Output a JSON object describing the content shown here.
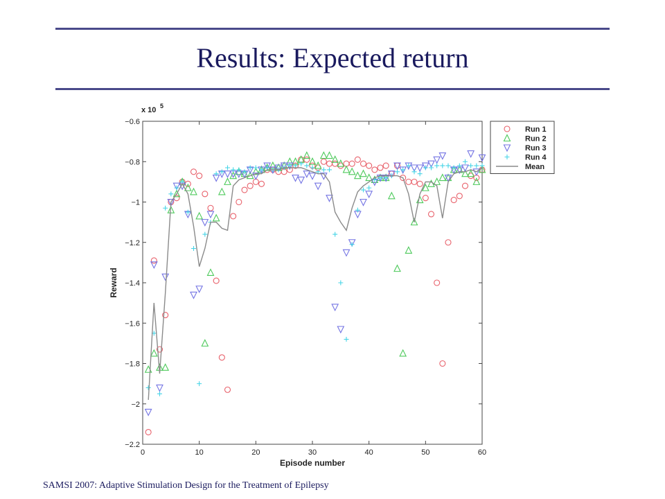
{
  "slide": {
    "title": "Results: Expected return",
    "footer": "SAMSI 2007: Adaptive Stimulation Design for the Treatment  of Epilepsy"
  },
  "chart_data": {
    "type": "scatter",
    "xlabel": "Episode number",
    "ylabel": "Reward",
    "y_exponent": "x 10",
    "y_exponent_power": "5",
    "xlim": [
      0,
      60
    ],
    "ylim": [
      -2.2,
      -0.6
    ],
    "xticks": [
      0,
      10,
      20,
      30,
      40,
      50,
      60
    ],
    "xtick_labels": [
      "0",
      "10",
      "20",
      "30",
      "40",
      "50",
      "60"
    ],
    "yticks": [
      -0.6,
      -0.8,
      -1,
      -1.2,
      -1.4,
      -1.6,
      -1.8,
      -2,
      -2.2
    ],
    "ytick_labels": [
      "−0.6",
      "−0.8",
      "−1",
      "−1.2",
      "−1.4",
      "−1.6",
      "−1.8",
      "−2",
      "−2.2"
    ],
    "legend_position": "top-right",
    "grid": false,
    "series": [
      {
        "name": "Run 1",
        "marker": "circle",
        "color": "#e8606a",
        "x": [
          1,
          2,
          3,
          4,
          5,
          6,
          7,
          8,
          9,
          10,
          11,
          12,
          13,
          14,
          15,
          16,
          17,
          18,
          19,
          20,
          21,
          22,
          23,
          24,
          25,
          26,
          27,
          28,
          29,
          30,
          31,
          32,
          33,
          34,
          35,
          36,
          37,
          38,
          39,
          40,
          41,
          42,
          43,
          44,
          45,
          46,
          47,
          48,
          49,
          50,
          51,
          52,
          53,
          54,
          55,
          56,
          57,
          58,
          59,
          60
        ],
        "y": [
          -2.14,
          -1.29,
          -1.73,
          -1.56,
          -1.0,
          -0.98,
          -0.9,
          -0.91,
          -0.85,
          -0.87,
          -0.96,
          -1.03,
          -1.39,
          -1.77,
          -1.93,
          -1.07,
          -1.0,
          -0.94,
          -0.92,
          -0.9,
          -0.91,
          -0.84,
          -0.84,
          -0.85,
          -0.85,
          -0.84,
          -0.82,
          -0.79,
          -0.79,
          -0.82,
          -0.83,
          -0.8,
          -0.81,
          -0.81,
          -0.82,
          -0.81,
          -0.81,
          -0.79,
          -0.81,
          -0.82,
          -0.84,
          -0.83,
          -0.82,
          -0.86,
          -0.82,
          -0.88,
          -0.9,
          -0.9,
          -0.91,
          -0.98,
          -1.06,
          -1.4,
          -1.8,
          -1.2,
          -0.99,
          -0.97,
          -0.92,
          -0.87,
          -0.88,
          -0.84
        ]
      },
      {
        "name": "Run 2",
        "marker": "triangle-up",
        "color": "#4cc95a",
        "x": [
          1,
          2,
          3,
          4,
          5,
          6,
          7,
          8,
          9,
          10,
          11,
          12,
          13,
          14,
          15,
          16,
          17,
          18,
          19,
          20,
          21,
          22,
          23,
          24,
          25,
          26,
          27,
          28,
          29,
          30,
          31,
          32,
          33,
          34,
          35,
          36,
          37,
          38,
          39,
          40,
          41,
          42,
          43,
          44,
          45,
          46,
          47,
          48,
          49,
          50,
          51,
          52,
          53,
          54,
          55,
          56,
          57,
          58,
          59,
          60
        ],
        "y": [
          -1.83,
          -1.75,
          -1.82,
          -1.82,
          -1.04,
          -0.96,
          -0.9,
          -0.93,
          -0.95,
          -1.07,
          -1.7,
          -1.35,
          -1.08,
          -0.95,
          -0.9,
          -0.87,
          -0.85,
          -0.86,
          -0.87,
          -0.85,
          -0.84,
          -0.83,
          -0.82,
          -0.83,
          -0.82,
          -0.8,
          -0.8,
          -0.79,
          -0.77,
          -0.8,
          -0.82,
          -0.77,
          -0.77,
          -0.79,
          -0.81,
          -0.84,
          -0.85,
          -0.87,
          -0.86,
          -0.88,
          -0.89,
          -0.88,
          -0.88,
          -0.97,
          -1.33,
          -1.75,
          -1.24,
          -1.1,
          -0.99,
          -0.93,
          -0.91,
          -0.9,
          -0.88,
          -0.88,
          -0.84,
          -0.84,
          -0.86,
          -0.86,
          -0.9,
          -0.84
        ]
      },
      {
        "name": "Run 3",
        "marker": "triangle-down",
        "color": "#7373e3",
        "x": [
          1,
          2,
          3,
          4,
          5,
          6,
          7,
          8,
          9,
          10,
          11,
          12,
          13,
          14,
          15,
          16,
          17,
          18,
          19,
          20,
          21,
          22,
          23,
          24,
          25,
          26,
          27,
          28,
          29,
          30,
          31,
          32,
          33,
          34,
          35,
          36,
          37,
          38,
          39,
          40,
          41,
          42,
          43,
          44,
          45,
          46,
          47,
          48,
          49,
          50,
          51,
          52,
          53,
          54,
          55,
          56,
          57,
          58,
          59,
          60
        ],
        "y": [
          -2.04,
          -1.31,
          -1.92,
          -1.37,
          -1.0,
          -0.92,
          -0.92,
          -1.06,
          -1.46,
          -1.43,
          -1.1,
          -1.06,
          -0.88,
          -0.86,
          -0.86,
          -0.86,
          -0.86,
          -0.86,
          -0.84,
          -0.87,
          -0.84,
          -0.82,
          -0.84,
          -0.83,
          -0.82,
          -0.82,
          -0.88,
          -0.89,
          -0.86,
          -0.87,
          -0.92,
          -0.87,
          -0.98,
          -1.52,
          -1.63,
          -1.25,
          -1.2,
          -1.06,
          -1.0,
          -0.96,
          -0.9,
          -0.88,
          -0.88,
          -0.86,
          -0.82,
          -0.84,
          -0.82,
          -0.83,
          -0.83,
          -0.82,
          -0.81,
          -0.79,
          -0.77,
          -0.88,
          -0.84,
          -0.84,
          -0.83,
          -0.76,
          -0.85,
          -0.78
        ]
      },
      {
        "name": "Run 4",
        "marker": "plus",
        "color": "#45d4e6",
        "x": [
          1,
          2,
          3,
          4,
          5,
          6,
          7,
          8,
          9,
          10,
          11,
          12,
          13,
          14,
          15,
          16,
          17,
          18,
          19,
          20,
          21,
          22,
          23,
          24,
          25,
          26,
          27,
          28,
          29,
          30,
          31,
          32,
          33,
          34,
          35,
          36,
          37,
          38,
          39,
          40,
          41,
          42,
          43,
          44,
          45,
          46,
          47,
          48,
          49,
          50,
          51,
          52,
          53,
          54,
          55,
          56,
          57,
          58,
          59,
          60
        ],
        "y": [
          -1.92,
          -1.65,
          -1.95,
          -1.03,
          -0.96,
          -0.93,
          -0.9,
          -1.05,
          -1.23,
          -1.9,
          -1.16,
          -1.1,
          -0.86,
          -0.85,
          -0.83,
          -0.84,
          -0.84,
          -0.85,
          -0.83,
          -0.83,
          -0.84,
          -0.83,
          -0.84,
          -0.84,
          -0.83,
          -0.82,
          -0.82,
          -0.81,
          -0.82,
          -0.83,
          -0.85,
          -0.84,
          -0.84,
          -1.16,
          -1.4,
          -1.68,
          -1.21,
          -1.04,
          -0.94,
          -0.93,
          -0.89,
          -0.88,
          -0.88,
          -0.87,
          -0.85,
          -0.84,
          -0.82,
          -0.85,
          -0.86,
          -0.83,
          -0.83,
          -0.82,
          -0.82,
          -0.82,
          -0.83,
          -0.82,
          -0.8,
          -0.82,
          -0.82,
          -0.82
        ]
      },
      {
        "name": "Mean",
        "marker": "line",
        "color": "#8a8a8a",
        "x": [
          1,
          2,
          3,
          4,
          5,
          6,
          7,
          8,
          9,
          10,
          11,
          12,
          13,
          14,
          15,
          16,
          17,
          18,
          19,
          20,
          21,
          22,
          23,
          24,
          25,
          26,
          27,
          28,
          29,
          30,
          31,
          32,
          33,
          34,
          35,
          36,
          37,
          38,
          39,
          40,
          41,
          42,
          43,
          44,
          45,
          46,
          47,
          48,
          49,
          50,
          51,
          52,
          53,
          54,
          55,
          56,
          57,
          58,
          59,
          60
        ],
        "y": [
          -1.98,
          -1.5,
          -1.85,
          -1.45,
          -1.0,
          -0.96,
          -0.91,
          -0.96,
          -1.12,
          -1.32,
          -1.23,
          -1.1,
          -1.1,
          -1.13,
          -1.14,
          -0.92,
          -0.89,
          -0.88,
          -0.87,
          -0.86,
          -0.86,
          -0.84,
          -0.84,
          -0.84,
          -0.83,
          -0.83,
          -0.83,
          -0.83,
          -0.84,
          -0.85,
          -0.86,
          -0.86,
          -0.9,
          -1.05,
          -1.1,
          -1.14,
          -1.03,
          -0.95,
          -0.92,
          -0.9,
          -0.88,
          -0.87,
          -0.87,
          -0.87,
          -0.87,
          -0.88,
          -0.96,
          -1.1,
          -0.96,
          -0.9,
          -0.9,
          -0.92,
          -1.08,
          -0.9,
          -0.86,
          -0.85,
          -0.85,
          -0.84,
          -0.85,
          -0.83
        ]
      }
    ]
  }
}
